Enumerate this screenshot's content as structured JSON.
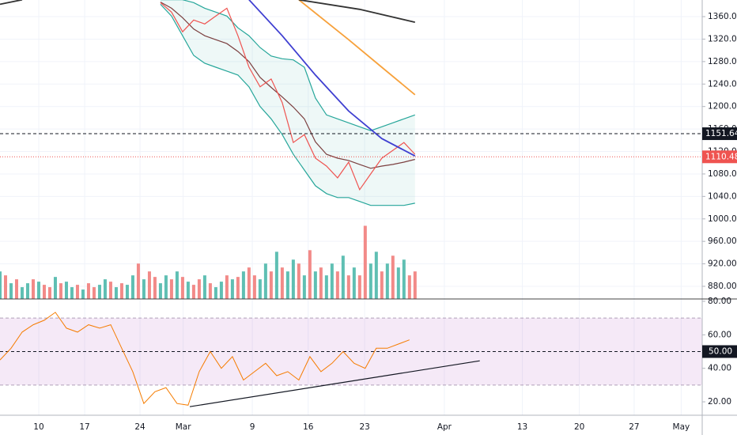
{
  "chart_data": [
    {
      "type": "line",
      "xlim": [
        -7,
        119.9
      ],
      "xticks": [
        {
          "value": 0,
          "label": "10"
        },
        {
          "value": 8.3,
          "label": "17"
        },
        {
          "value": 18.3,
          "label": "24"
        },
        {
          "value": 26.1,
          "label": "Mar"
        },
        {
          "value": 38.6,
          "label": "9"
        },
        {
          "value": 48.7,
          "label": "16"
        },
        {
          "value": 58.9,
          "label": "23"
        },
        {
          "value": 73.3,
          "label": "Apr"
        },
        {
          "value": 87.4,
          "label": "13"
        },
        {
          "value": 97.7,
          "label": "20"
        },
        {
          "value": 107.6,
          "label": "27"
        },
        {
          "value": 116.1,
          "label": "May"
        }
      ],
      "ylim": [
        857.5,
        1389.6
      ],
      "yticks": [
        {
          "value": 880,
          "label": "880.00"
        },
        {
          "value": 920,
          "label": "920.00"
        },
        {
          "value": 960,
          "label": "960.00"
        },
        {
          "value": 1000,
          "label": "1000.00"
        },
        {
          "value": 1040,
          "label": "1040.00"
        },
        {
          "value": 1080,
          "label": "1080.00"
        },
        {
          "value": 1120,
          "label": "1120.00"
        },
        {
          "value": 1160,
          "label": "1160.00"
        },
        {
          "value": 1200,
          "label": "1200.00"
        },
        {
          "value": 1240,
          "label": "1240.00"
        },
        {
          "value": 1280,
          "label": "1280.00"
        },
        {
          "value": 1320,
          "label": "1320.00"
        },
        {
          "value": 1360,
          "label": "1360.00"
        }
      ],
      "grid": true,
      "band": {
        "color": "#26a69a",
        "x": [
          22,
          24,
          26,
          28,
          30,
          32,
          34,
          36,
          38,
          40,
          42,
          44,
          46,
          48,
          50,
          52,
          54,
          56,
          58,
          60,
          62,
          64,
          66,
          68
        ],
        "upper": [
          1390,
          1390,
          1390,
          1385,
          1375,
          1368,
          1361,
          1340,
          1326,
          1305,
          1290,
          1285,
          1283,
          1270,
          1215,
          1185,
          1178,
          1171,
          1164,
          1157,
          1164,
          1171,
          1178,
          1185
        ],
        "lower": [
          1382,
          1361,
          1326,
          1291,
          1277,
          1270,
          1263,
          1256,
          1235,
          1200,
          1178,
          1150,
          1115,
          1087,
          1059,
          1045,
          1038,
          1038,
          1031,
          1024,
          1024,
          1024,
          1024,
          1028
        ]
      },
      "series": [
        {
          "color": "#7b3f3f",
          "x": [
            22,
            24,
            26,
            28,
            30,
            32,
            34,
            36,
            38,
            40,
            42,
            44,
            46,
            48,
            50,
            52,
            54,
            56,
            58,
            60,
            62,
            64,
            66,
            68
          ],
          "values": [
            1386,
            1375,
            1358,
            1338,
            1326,
            1319,
            1312,
            1298,
            1280,
            1252,
            1234,
            1217,
            1199,
            1178,
            1137,
            1115,
            1108,
            1104,
            1097,
            1090,
            1094,
            1097,
            1101,
            1106
          ]
        },
        {
          "color": "#ef5350",
          "x": [
            22,
            24,
            26,
            28,
            30,
            32,
            34,
            36,
            38,
            40,
            42,
            44,
            46,
            48,
            50,
            52,
            54,
            56,
            58,
            60,
            62,
            64,
            66,
            68
          ],
          "values": [
            1385,
            1368,
            1333,
            1354,
            1347,
            1361,
            1375,
            1326,
            1270,
            1235,
            1249,
            1207,
            1136,
            1150,
            1108,
            1094,
            1073,
            1101,
            1052,
            1080,
            1108,
            1122,
            1136,
            1115
          ]
        },
        {
          "color": "#3f3fd1",
          "x": [
            38,
            44,
            50,
            56,
            62,
            68
          ],
          "values": [
            1390,
            1326,
            1256,
            1192,
            1143,
            1112
          ]
        },
        {
          "color": "#f7a13b",
          "x": [
            47,
            56,
            62,
            68
          ],
          "values": [
            1390,
            1319,
            1270,
            1221
          ]
        },
        {
          "color": "#333333",
          "x": [
            -7,
            -3,
            20,
            47,
            58,
            68
          ],
          "values": [
            1382,
            1390,
            null,
            1390,
            1373,
            1350
          ]
        }
      ],
      "price_lines": [
        {
          "value": 1151.64,
          "color": "#131722"
        },
        {
          "value": 1110.48,
          "color": "#ef5350"
        }
      ],
      "volume": {
        "ylim": [
          0,
          380
        ],
        "up_color": "#5fbfb3",
        "down_color": "#f28a88",
        "values": [
          35,
          30,
          20,
          25,
          15,
          20,
          25,
          22,
          18,
          15,
          28,
          20,
          22,
          15,
          18,
          12,
          20,
          15,
          18,
          25,
          22,
          15,
          20,
          18,
          30,
          45,
          25,
          35,
          28,
          20,
          30,
          25,
          35,
          28,
          22,
          18,
          25,
          30,
          20,
          15,
          22,
          30,
          25,
          28,
          35,
          40,
          30,
          25,
          45,
          35,
          60,
          40,
          35,
          50,
          45,
          30,
          62,
          35,
          40,
          30,
          45,
          35,
          55,
          30,
          40,
          30,
          93,
          45,
          60,
          35,
          45,
          55,
          40,
          50,
          30,
          35
        ],
        "up": [
          1,
          0,
          1,
          0,
          1,
          1,
          0,
          1,
          0,
          0,
          1,
          0,
          1,
          1,
          0,
          1,
          0,
          0,
          1,
          1,
          0,
          1,
          0,
          1,
          1,
          0,
          1,
          0,
          0,
          1,
          1,
          0,
          1,
          0,
          1,
          0,
          0,
          1,
          0,
          1,
          1,
          0,
          1,
          0,
          1,
          0,
          0,
          1,
          1,
          0,
          1,
          0,
          1,
          1,
          0,
          1,
          0,
          1,
          0,
          1,
          1,
          0,
          1,
          0,
          1,
          0,
          0,
          1,
          1,
          0,
          1,
          0,
          1,
          1,
          0,
          0
        ]
      }
    },
    {
      "type": "line",
      "ylim": [
        12,
        81.4
      ],
      "yticks": [
        {
          "value": 20,
          "label": "20.00"
        },
        {
          "value": 40,
          "label": "40.00"
        },
        {
          "value": 60,
          "label": "60.00"
        },
        {
          "value": 80,
          "label": "80.00"
        }
      ],
      "band": [
        30,
        70
      ],
      "midline": {
        "value": 50,
        "label": "50.00"
      },
      "series": [
        {
          "color": "#f57c00",
          "x": [
            -7,
            -5,
            -3,
            -1,
            1,
            3,
            5,
            7,
            9,
            11,
            13,
            15,
            17,
            19,
            21,
            23,
            25,
            27,
            29,
            31,
            33,
            35,
            37,
            39,
            41,
            43,
            45,
            47,
            49,
            51,
            53,
            55,
            57,
            59,
            61,
            63,
            65,
            67
          ],
          "values": [
            45,
            52,
            61.6,
            66,
            68.7,
            73.4,
            64,
            61.6,
            66,
            64,
            66,
            52,
            38,
            19,
            26,
            28.5,
            19,
            18,
            38,
            50,
            40,
            47,
            33,
            38,
            43,
            35.6,
            38,
            33,
            47,
            38,
            43,
            50,
            43,
            40,
            52,
            52,
            54.5,
            57
          ]
        }
      ],
      "trendline": {
        "color": "#131722",
        "x": [
          27.3,
          79.7
        ],
        "values": [
          17.1,
          44.5
        ]
      }
    }
  ]
}
